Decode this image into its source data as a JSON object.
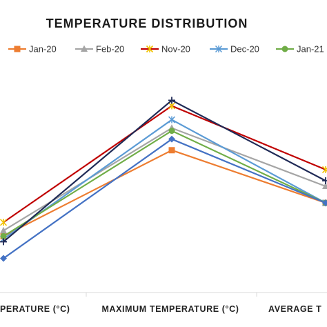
{
  "chart_data": {
    "type": "line",
    "title": "TEMPERATURE DISTRIBUTION",
    "xlabel": "",
    "ylabel": "",
    "categories": [
      "MINIMUM TEMPERATURE (°C)",
      "MAXIMUM TEMPERATURE (°C)",
      "AVERAGE TEMPERATURE (°C)"
    ],
    "visible_category_labels": [
      "PERATURE (°C)",
      "MAXIMUM TEMPERATURE (°C)",
      "AVERAGE T"
    ],
    "ylim": [
      0,
      10
    ],
    "grid": false,
    "legend_position": "top",
    "series": [
      {
        "name": "Jan-20",
        "values": [
          3.1,
          6.2,
          4.3
        ],
        "color": "#ED7D31",
        "marker": "square"
      },
      {
        "name": "Feb-20",
        "values": [
          3.3,
          7.0,
          4.9
        ],
        "color": "#A5A5A5",
        "marker": "triangle"
      },
      {
        "name": "Nov-20",
        "values": [
          3.6,
          7.8,
          5.5
        ],
        "color": "#C00000",
        "marker": "star"
      },
      {
        "name": "Dec-20",
        "values": [
          3.0,
          7.3,
          4.3
        ],
        "color": "#5B9BD5",
        "marker": "asterisk"
      },
      {
        "name": "Jan-21",
        "values": [
          3.1,
          6.9,
          4.3
        ],
        "color": "#70AD47",
        "marker": "circle"
      },
      {
        "values": [
          2.3,
          6.6,
          4.3
        ],
        "color": "#4472C4",
        "marker": "diamond"
      },
      {
        "values": [
          2.9,
          8.0,
          5.1
        ],
        "color": "#1F2A56",
        "marker": "plus"
      }
    ]
  }
}
